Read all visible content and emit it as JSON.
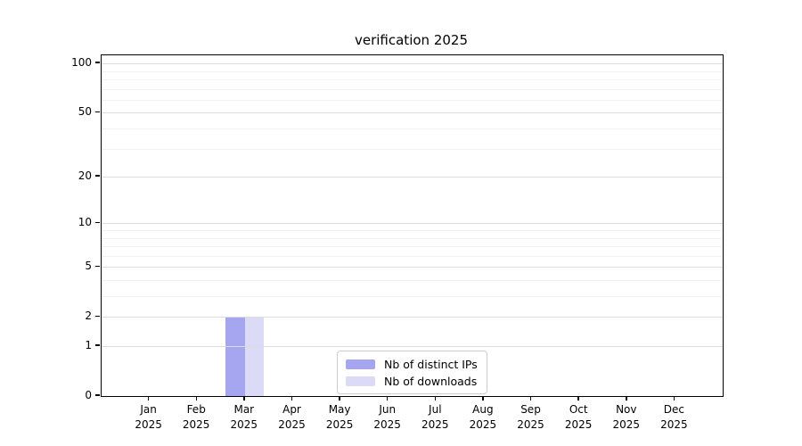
{
  "chart_data": {
    "type": "bar",
    "title": "verification 2025",
    "categories": [
      "Jan",
      "Feb",
      "Mar",
      "Apr",
      "May",
      "Jun",
      "Jul",
      "Aug",
      "Sep",
      "Oct",
      "Nov",
      "Dec"
    ],
    "year": "2025",
    "series": [
      {
        "name": "Nb of distinct IPs",
        "color": "#a5a5f0",
        "values": [
          0,
          0,
          2,
          0,
          0,
          0,
          0,
          0,
          0,
          0,
          0,
          0
        ]
      },
      {
        "name": "Nb of downloads",
        "color": "#dbdbf8",
        "values": [
          0,
          0,
          2,
          0,
          0,
          0,
          0,
          0,
          0,
          0,
          0,
          0
        ]
      }
    ],
    "y_axis": {
      "scale": "log1p",
      "major_ticks": [
        0,
        1,
        2,
        5,
        10,
        20,
        50,
        100
      ],
      "minor_ticks": [
        3,
        4,
        6,
        7,
        8,
        9,
        30,
        40,
        60,
        70,
        80,
        90
      ],
      "lim": [
        0,
        112
      ]
    },
    "grid": "horizontal-major-and-minor",
    "legend_position": "lower center"
  },
  "colors": {
    "grid_major": "#dcdcdc",
    "grid_minor": "#f2f2f2",
    "spine": "#000000",
    "legend_border": "#cccccc"
  }
}
